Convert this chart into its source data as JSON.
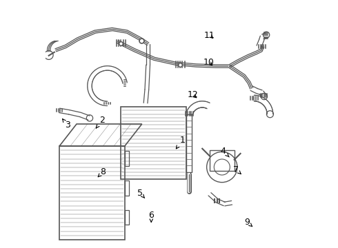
{
  "background_color": "#ffffff",
  "line_color": "#555555",
  "label_color": "#000000",
  "label_fontsize": 9
}
